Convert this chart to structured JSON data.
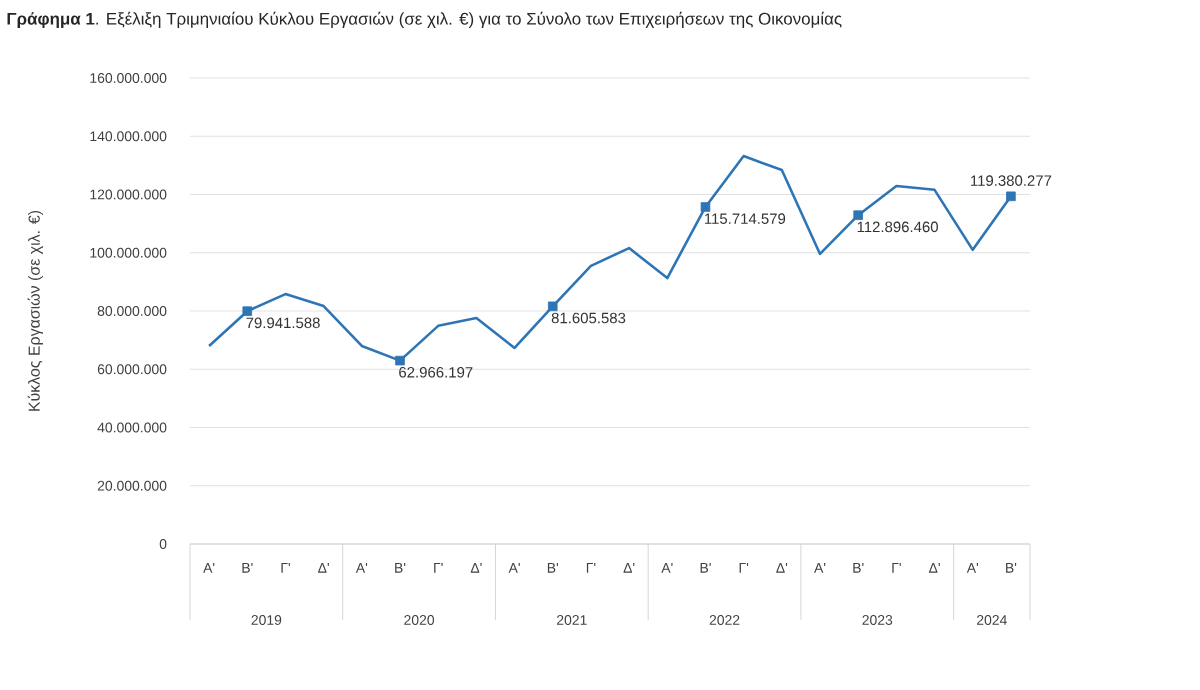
{
  "chart_data": {
    "type": "line",
    "title": "**Γράφημα 1**. Εξέλιξη Τριμηνιαίου Κύκλου Εργασιών (σε χιλ. €) για το Σύνολο των Επιχειρήσεων της Οικονομίας",
    "ylabel": "Κύκλος Εργασιών (σε χιλ. €)",
    "categories": [
      "Α'",
      "Β'",
      "Γ'",
      "Δ'",
      "Α'",
      "Β'",
      "Γ'",
      "Δ'",
      "Α'",
      "Β'",
      "Γ'",
      "Δ'",
      "Α'",
      "Β'",
      "Γ'",
      "Δ'",
      "Α'",
      "Β'",
      "Γ'",
      "Δ'",
      "Α'",
      "Β'"
    ],
    "annotations": [
      "2019",
      "2020",
      "2021",
      "2022",
      "2023",
      "2024"
    ],
    "series": [
      {
        "color": "#2e75b6",
        "values": [
          68000000,
          79941588,
          85800000,
          81700000,
          68000000,
          62966197,
          74900000,
          77600000,
          67300000,
          81605583,
          95500000,
          101600000,
          91300000,
          115714579,
          133200000,
          128400000,
          99600000,
          112896460,
          122900000,
          121600000,
          101000000,
          119380277
        ],
        "value_labels": [
          null,
          "79.941.588",
          null,
          null,
          null,
          "62.966.197",
          null,
          null,
          null,
          "81.605.583",
          null,
          null,
          null,
          "115.714.579",
          null,
          null,
          null,
          "112.896.460",
          null,
          null,
          null,
          "119.380.277"
        ]
      }
    ],
    "ylim": [
      0,
      160000000
    ],
    "yticks": [
      0,
      {
        "value": 20000000,
        "label": "20.000.000"
      },
      {
        "value": 40000000,
        "label": "40.000.000"
      },
      {
        "value": 60000000,
        "label": "60.000.000"
      },
      {
        "value": 80000000,
        "label": "80.000.000"
      },
      {
        "value": 100000000,
        "label": "100.000.000"
      },
      {
        "value": 120000000,
        "label": "120.000.000"
      },
      {
        "value": 140000000,
        "label": "140.000.000"
      },
      {
        "value": 160000000,
        "label": "160.000.000"
      }
    ],
    "grid": "y",
    "line_style": "solid"
  }
}
